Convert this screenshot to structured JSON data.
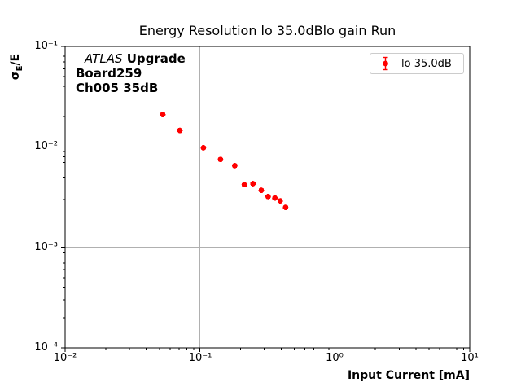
{
  "title": "Energy Resolution lo 35.0dBlo gain Run",
  "axes": {
    "xlabel": "Input Current [mA]",
    "ylabel_sigma": "σ",
    "ylabel_sub": "E",
    "ylabel_rest": "/E"
  },
  "annotation": {
    "line1_italic": "ATLAS",
    "line1_bold": "Upgrade",
    "line2": "Board259",
    "line3": "Ch005 35dB"
  },
  "legend": {
    "label": "lo 35.0dB"
  },
  "colors": {
    "marker": "#ff0000",
    "grid": "#b0b0b0",
    "spine": "#000000",
    "legend_border": "#cccccc",
    "text": "#000000",
    "background": "#ffffff"
  },
  "chart_data": {
    "type": "scatter",
    "title": "Energy Resolution lo 35.0dBlo gain Run",
    "xlabel": "Input Current [mA]",
    "ylabel": "σE/E",
    "xscale": "log",
    "yscale": "log",
    "xlim": [
      0.01,
      10
    ],
    "ylim": [
      0.0001,
      0.1
    ],
    "grid": "major",
    "legend_position": "upper right",
    "x_ticks": [
      {
        "label": "10⁻²",
        "value": 0.01
      },
      {
        "label": "10⁻¹",
        "value": 0.1
      },
      {
        "label": "10⁰",
        "value": 1
      },
      {
        "label": "10¹",
        "value": 10
      }
    ],
    "y_ticks": [
      {
        "label": "10⁻¹",
        "value": 0.1
      },
      {
        "label": "10⁻²",
        "value": 0.01
      },
      {
        "label": "10⁻³",
        "value": 0.001
      },
      {
        "label": "10⁻⁴",
        "value": 0.0001
      }
    ],
    "series": [
      {
        "name": "lo 35.0dB",
        "marker": "errorbar-dot",
        "color": "#ff0000",
        "x": [
          0.053,
          0.071,
          0.106,
          0.142,
          0.181,
          0.213,
          0.247,
          0.285,
          0.32,
          0.359,
          0.394,
          0.432
        ],
        "y": [
          0.021,
          0.0146,
          0.0098,
          0.0075,
          0.0065,
          0.0042,
          0.0043,
          0.0037,
          0.0032,
          0.0031,
          0.0029,
          0.0025
        ],
        "note": "error bars smaller than marker size"
      }
    ]
  }
}
